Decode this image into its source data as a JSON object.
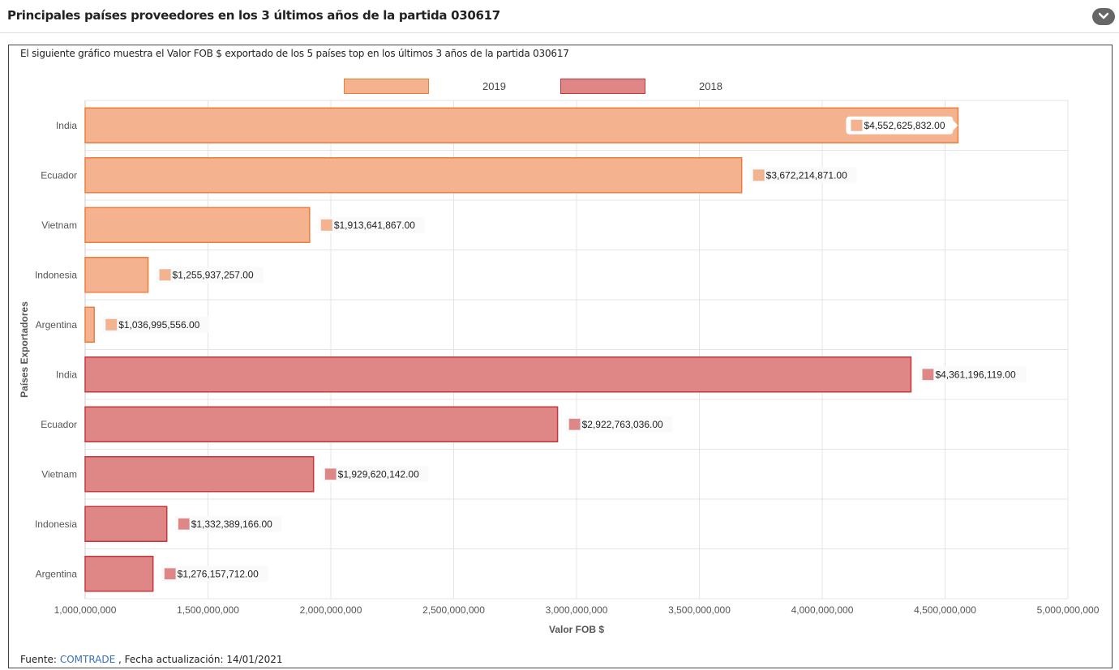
{
  "header": {
    "title": "Principales países proveedores en los 3 últimos años de la partida 030617"
  },
  "description": "El siguiente gráfico muestra el Valor FOB $ exportado de los 5 países top en los últimos 3 años de la partida 030617",
  "footer": {
    "source_label": "Fuente:",
    "source_link": "COMTRADE",
    "update_text": ", Fecha actualización: 14/01/2021"
  },
  "colors": {
    "series_2019_fill": "#f4b28e",
    "series_2019_stroke": "#ee7d3b",
    "series_2018_fill": "#de8786",
    "series_2018_stroke": "#c8363a",
    "collapse_button": "#666666",
    "link": "#3a6fb5"
  },
  "chart_data": {
    "type": "bar",
    "orientation": "horizontal",
    "xlabel": "Valor FOB $",
    "ylabel": "Países Exportadores",
    "xlim": [
      1000000000,
      5000000000
    ],
    "x_ticks": [
      "1,000,000,000",
      "1,500,000,000",
      "2,000,000,000",
      "2,500,000,000",
      "3,000,000,000",
      "3,500,000,000",
      "4,000,000,000",
      "4,500,000,000",
      "5,000,000,000"
    ],
    "grid": true,
    "legend_position": "top",
    "series": [
      {
        "name": "2019",
        "categories": [
          "India",
          "Ecuador",
          "Vietnam",
          "Indonesia",
          "Argentina"
        ],
        "values": [
          4552625832.0,
          3672214871.0,
          1913641867.0,
          1255937257.0,
          1036995556.0
        ],
        "labels": [
          "$4,552,625,832.00",
          "$3,672,214,871.00",
          "$1,913,641,867.00",
          "$1,255,937,257.00",
          "$1,036,995,556.00"
        ]
      },
      {
        "name": "2018",
        "categories": [
          "India",
          "Ecuador",
          "Vietnam",
          "Indonesia",
          "Argentina"
        ],
        "values": [
          4361196119.0,
          2922763036.0,
          1929620142.0,
          1332389166.0,
          1276157712.0
        ],
        "labels": [
          "$4,361,196,119.00",
          "$2,922,763,036.00",
          "$1,929,620,142.00",
          "$1,332,389,166.00",
          "$1,276,157,712.00"
        ]
      }
    ]
  }
}
